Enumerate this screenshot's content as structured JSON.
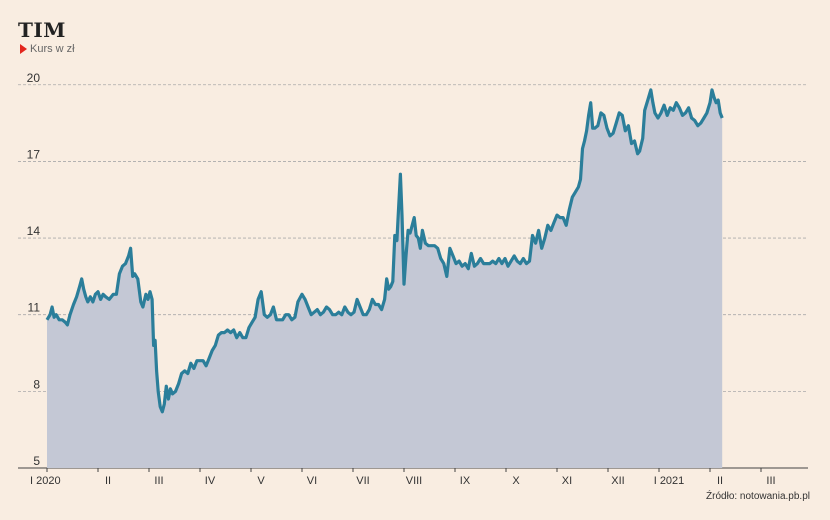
{
  "chart_data": {
    "type": "area",
    "title": "TIM",
    "subtitle": "Kurs w zł",
    "source": "Źródło: notowania.pb.pl",
    "colors": {
      "line": "#2b7e9a",
      "fill": "#c4c8d5",
      "marker": "#e3261d",
      "background": "#f9ede1"
    },
    "ylim": [
      5,
      20.5
    ],
    "y_ticks": [
      5,
      8,
      11,
      14,
      17,
      20
    ],
    "grid": true,
    "x_tick_labels": [
      "I 2020",
      "II",
      "III",
      "IV",
      "V",
      "VI",
      "VII",
      "VIII",
      "IX",
      "X",
      "XI",
      "XII",
      "I 2021",
      "II",
      "III"
    ],
    "x_tick_months": [
      0,
      1,
      2,
      3,
      4,
      5,
      6,
      7,
      8,
      9,
      10,
      11,
      12,
      13,
      14
    ],
    "series": [
      {
        "name": "",
        "points": [
          [
            0.0,
            10.8
          ],
          [
            0.06,
            11.0
          ],
          [
            0.1,
            11.3
          ],
          [
            0.14,
            10.9
          ],
          [
            0.18,
            11.0
          ],
          [
            0.24,
            10.8
          ],
          [
            0.3,
            10.8
          ],
          [
            0.36,
            10.7
          ],
          [
            0.4,
            10.6
          ],
          [
            0.45,
            11.0
          ],
          [
            0.52,
            11.4
          ],
          [
            0.58,
            11.7
          ],
          [
            0.64,
            12.1
          ],
          [
            0.68,
            12.4
          ],
          [
            0.72,
            12.0
          ],
          [
            0.76,
            11.7
          ],
          [
            0.8,
            11.5
          ],
          [
            0.85,
            11.7
          ],
          [
            0.9,
            11.5
          ],
          [
            0.95,
            11.8
          ],
          [
            1.0,
            11.9
          ],
          [
            1.05,
            11.6
          ],
          [
            1.1,
            11.8
          ],
          [
            1.15,
            11.7
          ],
          [
            1.22,
            11.6
          ],
          [
            1.3,
            11.8
          ],
          [
            1.36,
            11.8
          ],
          [
            1.42,
            12.6
          ],
          [
            1.48,
            12.9
          ],
          [
            1.54,
            13.0
          ],
          [
            1.6,
            13.3
          ],
          [
            1.64,
            13.6
          ],
          [
            1.68,
            12.5
          ],
          [
            1.72,
            12.6
          ],
          [
            1.78,
            12.4
          ],
          [
            1.84,
            11.5
          ],
          [
            1.88,
            11.3
          ],
          [
            1.94,
            11.8
          ],
          [
            1.98,
            11.6
          ],
          [
            2.02,
            11.9
          ],
          [
            2.06,
            11.6
          ],
          [
            2.09,
            9.8
          ],
          [
            2.12,
            10.0
          ],
          [
            2.15,
            8.8
          ],
          [
            2.18,
            8.0
          ],
          [
            2.22,
            7.4
          ],
          [
            2.26,
            7.2
          ],
          [
            2.3,
            7.5
          ],
          [
            2.34,
            8.2
          ],
          [
            2.38,
            7.7
          ],
          [
            2.42,
            8.1
          ],
          [
            2.46,
            7.9
          ],
          [
            2.52,
            8.0
          ],
          [
            2.58,
            8.3
          ],
          [
            2.64,
            8.7
          ],
          [
            2.7,
            8.8
          ],
          [
            2.76,
            8.7
          ],
          [
            2.82,
            9.1
          ],
          [
            2.88,
            8.9
          ],
          [
            2.94,
            9.2
          ],
          [
            3.0,
            9.2
          ],
          [
            3.06,
            9.2
          ],
          [
            3.12,
            9.0
          ],
          [
            3.18,
            9.3
          ],
          [
            3.24,
            9.6
          ],
          [
            3.3,
            9.8
          ],
          [
            3.36,
            10.2
          ],
          [
            3.42,
            10.3
          ],
          [
            3.48,
            10.3
          ],
          [
            3.54,
            10.4
          ],
          [
            3.6,
            10.3
          ],
          [
            3.66,
            10.4
          ],
          [
            3.72,
            10.1
          ],
          [
            3.78,
            10.3
          ],
          [
            3.84,
            10.1
          ],
          [
            3.9,
            10.1
          ],
          [
            3.96,
            10.5
          ],
          [
            4.02,
            10.7
          ],
          [
            4.08,
            10.9
          ],
          [
            4.14,
            11.6
          ],
          [
            4.2,
            11.9
          ],
          [
            4.26,
            11.0
          ],
          [
            4.32,
            10.9
          ],
          [
            4.38,
            11.0
          ],
          [
            4.44,
            11.3
          ],
          [
            4.5,
            10.8
          ],
          [
            4.56,
            10.8
          ],
          [
            4.62,
            10.8
          ],
          [
            4.68,
            11.0
          ],
          [
            4.74,
            11.0
          ],
          [
            4.8,
            10.8
          ],
          [
            4.86,
            10.9
          ],
          [
            4.92,
            11.5
          ],
          [
            5.0,
            11.8
          ],
          [
            5.06,
            11.6
          ],
          [
            5.12,
            11.3
          ],
          [
            5.18,
            11.0
          ],
          [
            5.24,
            11.1
          ],
          [
            5.3,
            11.2
          ],
          [
            5.36,
            11.0
          ],
          [
            5.42,
            11.1
          ],
          [
            5.48,
            11.3
          ],
          [
            5.54,
            11.2
          ],
          [
            5.6,
            11.0
          ],
          [
            5.66,
            11.0
          ],
          [
            5.72,
            11.1
          ],
          [
            5.78,
            11.0
          ],
          [
            5.84,
            11.3
          ],
          [
            5.9,
            11.1
          ],
          [
            5.96,
            11.0
          ],
          [
            6.02,
            11.1
          ],
          [
            6.08,
            11.6
          ],
          [
            6.14,
            11.3
          ],
          [
            6.2,
            11.0
          ],
          [
            6.26,
            11.0
          ],
          [
            6.32,
            11.2
          ],
          [
            6.38,
            11.6
          ],
          [
            6.44,
            11.4
          ],
          [
            6.5,
            11.4
          ],
          [
            6.56,
            11.2
          ],
          [
            6.62,
            11.6
          ],
          [
            6.66,
            12.4
          ],
          [
            6.7,
            12.0
          ],
          [
            6.74,
            12.1
          ],
          [
            6.78,
            12.3
          ],
          [
            6.82,
            14.1
          ],
          [
            6.86,
            13.9
          ],
          [
            6.9,
            15.4
          ],
          [
            6.93,
            16.5
          ],
          [
            6.96,
            14.9
          ],
          [
            7.0,
            12.2
          ],
          [
            7.04,
            13.3
          ],
          [
            7.08,
            14.3
          ],
          [
            7.12,
            14.2
          ],
          [
            7.16,
            14.5
          ],
          [
            7.2,
            14.8
          ],
          [
            7.24,
            14.1
          ],
          [
            7.28,
            14.0
          ],
          [
            7.32,
            13.6
          ],
          [
            7.36,
            14.3
          ],
          [
            7.42,
            13.8
          ],
          [
            7.48,
            13.7
          ],
          [
            7.54,
            13.7
          ],
          [
            7.6,
            13.7
          ],
          [
            7.66,
            13.6
          ],
          [
            7.72,
            13.2
          ],
          [
            7.78,
            13.0
          ],
          [
            7.84,
            12.5
          ],
          [
            7.9,
            13.6
          ],
          [
            7.96,
            13.3
          ],
          [
            8.02,
            13.0
          ],
          [
            8.08,
            13.1
          ],
          [
            8.14,
            12.9
          ],
          [
            8.2,
            13.0
          ],
          [
            8.26,
            12.8
          ],
          [
            8.32,
            13.4
          ],
          [
            8.38,
            12.9
          ],
          [
            8.44,
            13.0
          ],
          [
            8.5,
            13.2
          ],
          [
            8.56,
            13.0
          ],
          [
            8.62,
            13.0
          ],
          [
            8.68,
            13.0
          ],
          [
            8.74,
            13.1
          ],
          [
            8.8,
            13.0
          ],
          [
            8.86,
            13.2
          ],
          [
            8.92,
            13.0
          ],
          [
            8.98,
            13.2
          ],
          [
            9.04,
            12.9
          ],
          [
            9.1,
            13.1
          ],
          [
            9.16,
            13.3
          ],
          [
            9.22,
            13.1
          ],
          [
            9.28,
            13.0
          ],
          [
            9.34,
            13.2
          ],
          [
            9.4,
            13.0
          ],
          [
            9.46,
            13.1
          ],
          [
            9.52,
            14.1
          ],
          [
            9.58,
            13.8
          ],
          [
            9.64,
            14.3
          ],
          [
            9.7,
            13.6
          ],
          [
            9.76,
            14.0
          ],
          [
            9.82,
            14.5
          ],
          [
            9.88,
            14.3
          ],
          [
            9.94,
            14.6
          ],
          [
            10.0,
            14.9
          ],
          [
            10.06,
            14.8
          ],
          [
            10.12,
            14.8
          ],
          [
            10.18,
            14.5
          ],
          [
            10.24,
            15.1
          ],
          [
            10.3,
            15.6
          ],
          [
            10.36,
            15.8
          ],
          [
            10.42,
            16.0
          ],
          [
            10.46,
            16.3
          ],
          [
            10.5,
            17.5
          ],
          [
            10.54,
            17.8
          ],
          [
            10.58,
            18.2
          ],
          [
            10.62,
            18.8
          ],
          [
            10.66,
            19.3
          ],
          [
            10.7,
            18.3
          ],
          [
            10.74,
            18.3
          ],
          [
            10.8,
            18.4
          ],
          [
            10.86,
            18.9
          ],
          [
            10.92,
            18.8
          ],
          [
            10.98,
            18.3
          ],
          [
            11.04,
            18.0
          ],
          [
            11.1,
            18.1
          ],
          [
            11.16,
            18.5
          ],
          [
            11.22,
            18.9
          ],
          [
            11.28,
            18.8
          ],
          [
            11.34,
            18.2
          ],
          [
            11.4,
            18.4
          ],
          [
            11.46,
            17.7
          ],
          [
            11.52,
            17.8
          ],
          [
            11.58,
            17.3
          ],
          [
            11.62,
            17.4
          ],
          [
            11.68,
            17.9
          ],
          [
            11.72,
            19.0
          ],
          [
            11.78,
            19.4
          ],
          [
            11.84,
            19.8
          ],
          [
            11.88,
            19.3
          ],
          [
            11.92,
            18.9
          ],
          [
            11.98,
            18.7
          ],
          [
            12.04,
            18.9
          ],
          [
            12.1,
            19.2
          ],
          [
            12.16,
            18.8
          ],
          [
            12.22,
            19.1
          ],
          [
            12.28,
            19.0
          ],
          [
            12.34,
            19.3
          ],
          [
            12.4,
            19.1
          ],
          [
            12.46,
            18.8
          ],
          [
            12.52,
            18.9
          ],
          [
            12.58,
            19.1
          ],
          [
            12.64,
            18.7
          ],
          [
            12.7,
            18.6
          ],
          [
            12.76,
            18.4
          ],
          [
            12.82,
            18.5
          ],
          [
            12.88,
            18.7
          ],
          [
            12.94,
            18.9
          ],
          [
            13.0,
            19.3
          ],
          [
            13.04,
            19.8
          ],
          [
            13.08,
            19.5
          ],
          [
            13.12,
            19.3
          ],
          [
            13.16,
            19.4
          ],
          [
            13.2,
            18.9
          ],
          [
            13.24,
            18.7
          ]
        ]
      }
    ]
  }
}
